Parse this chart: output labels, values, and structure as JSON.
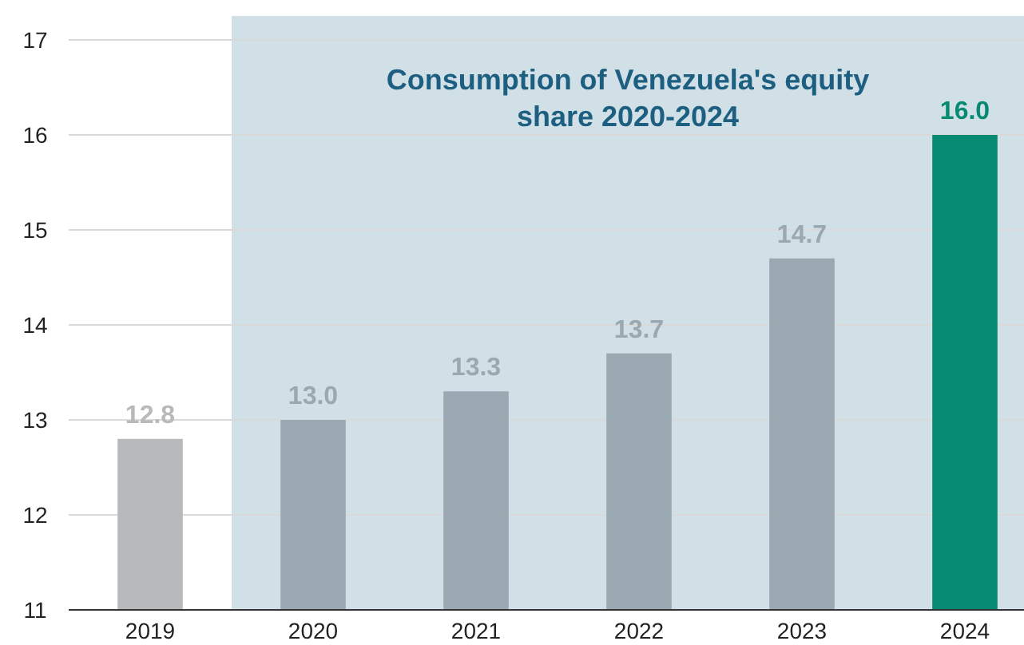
{
  "chart_data": {
    "type": "bar",
    "categories": [
      "2019",
      "2020",
      "2021",
      "2022",
      "2023",
      "2024"
    ],
    "values": [
      12.8,
      13.0,
      13.3,
      13.7,
      14.7,
      16.0
    ],
    "colors": [
      "#b8b9bb",
      "#9aa8b1",
      "#9aa8b1",
      "#9aa8b1",
      "#9aa8b1",
      "#068b72"
    ],
    "ylim": [
      11,
      17
    ],
    "yticks": [
      11,
      12,
      13,
      14,
      15,
      16,
      17
    ],
    "grid": "y",
    "value_labels": [
      "12.8",
      "13.0",
      "13.3",
      "13.7",
      "14.7",
      "16.0"
    ],
    "bands": [
      {
        "axis": "x",
        "from": "2020",
        "to": "2024",
        "label": "Consumption of Venezuela's equity share 2020-2024",
        "color": "#d1dfe6"
      }
    ]
  }
}
